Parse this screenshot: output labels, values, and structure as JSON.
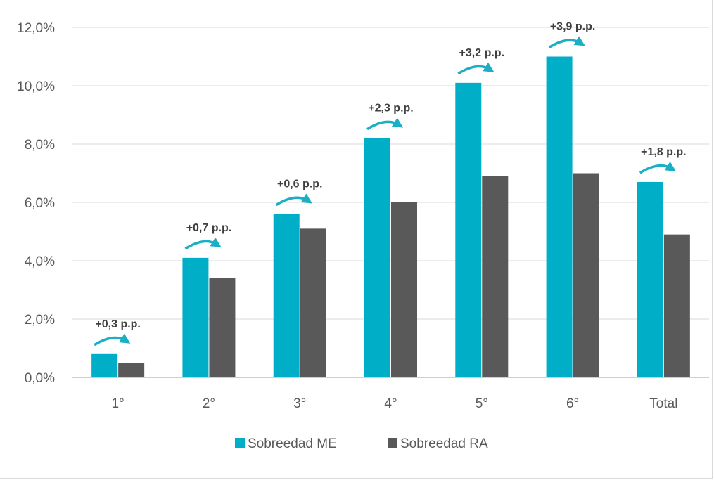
{
  "chart_data": {
    "type": "bar",
    "categories": [
      "1°",
      "2°",
      "3°",
      "4°",
      "5°",
      "6°",
      "Total"
    ],
    "series": [
      {
        "name": "Sobreedad ME",
        "values": [
          0.8,
          4.1,
          5.6,
          8.2,
          10.1,
          11.0,
          6.7
        ],
        "color": "#00AEC7"
      },
      {
        "name": "Sobreedad RA",
        "values": [
          0.5,
          3.4,
          5.1,
          6.0,
          6.9,
          7.0,
          4.9
        ],
        "color": "#595959"
      }
    ],
    "annotations": [
      "+0,3 p.p.",
      "+0,7 p.p.",
      "+0,6 p.p.",
      "+2,3 p.p.",
      "+3,2 p.p.",
      "+3,9 p.p.",
      "+1,8 p.p."
    ],
    "yticks": [
      "0,0%",
      "2,0%",
      "4,0%",
      "6,0%",
      "8,0%",
      "10,0%",
      "12,0%"
    ],
    "ylim": [
      0,
      12
    ],
    "title": "",
    "xlabel": "",
    "ylabel": "",
    "grid": true,
    "legend_position": "bottom",
    "arrow_color": "#1AAFC4"
  }
}
